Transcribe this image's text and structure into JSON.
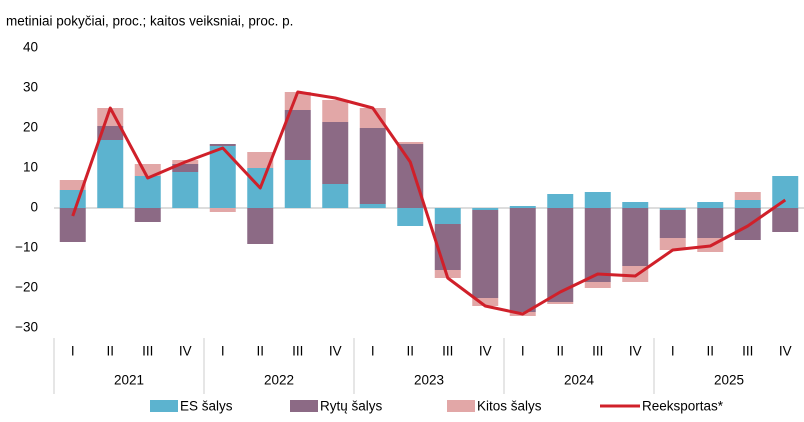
{
  "chart_data": {
    "type": "bar",
    "stacked": true,
    "title": "metiniai pokyčiai, proc.; kaitos veiksniai, proc. p.",
    "categories": [
      "I",
      "II",
      "III",
      "IV",
      "I",
      "II",
      "III",
      "IV",
      "I",
      "II",
      "III",
      "IV",
      "I",
      "II",
      "III",
      "IV",
      "I",
      "II",
      "III",
      "IV"
    ],
    "years": [
      "2021",
      "2022",
      "2023",
      "2024",
      "2025"
    ],
    "series": [
      {
        "name": "ES šalys",
        "type": "bar",
        "color": "#5cb3cf",
        "values": [
          4.5,
          17,
          8,
          9,
          15.5,
          10,
          12,
          6,
          1,
          -4.5,
          -4,
          -0.5,
          0.5,
          3.5,
          4,
          1.5,
          -0.5,
          1.5,
          2,
          8
        ]
      },
      {
        "name": "Rytų šalys",
        "type": "bar",
        "color": "#8c6a85",
        "values": [
          -8.5,
          3.5,
          -3.5,
          2,
          0.5,
          -9,
          12.5,
          15.5,
          19,
          16,
          -11.5,
          -22,
          -26,
          -23.5,
          -18.5,
          -14.5,
          -7,
          -7.5,
          -8,
          -6
        ]
      },
      {
        "name": "Kitos šalys",
        "type": "bar",
        "color": "#e2a7a7",
        "values": [
          2.5,
          4.5,
          3,
          1,
          -1,
          4,
          4.5,
          5.5,
          5,
          0.5,
          -2,
          -2,
          -1,
          -0.5,
          -1.5,
          -4,
          -3,
          -3.5,
          2,
          0
        ]
      },
      {
        "name": "Reeksportas*",
        "type": "line",
        "color": "#d0202a",
        "values": [
          -2,
          25,
          7.5,
          11.5,
          15,
          5,
          29,
          27.5,
          25,
          11.5,
          -17.5,
          -24.5,
          -26.5,
          -21,
          -16.5,
          -17,
          -10.5,
          -9.5,
          -4.5,
          2
        ]
      }
    ],
    "ylim": [
      -30,
      40
    ],
    "yticks": [
      {
        "value": -30,
        "label": "−30"
      },
      {
        "value": -20,
        "label": "−20"
      },
      {
        "value": -10,
        "label": "−10"
      },
      0,
      10,
      20,
      30,
      40
    ],
    "legend": "bottom"
  }
}
